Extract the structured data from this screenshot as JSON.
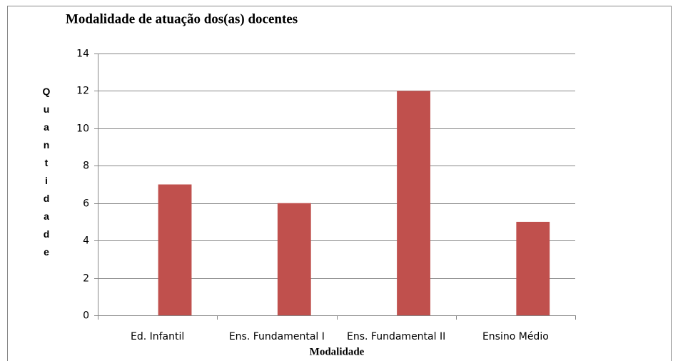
{
  "chart_data": {
    "type": "bar",
    "title": "Modalidade de atuação dos(as) docentes",
    "x_label": "Modalidade",
    "y_label": "Quantidade",
    "categories": [
      "Ed. Infantil",
      "Ens. Fundamental I",
      "Ens. Fundamental II",
      "Ensino Médio"
    ],
    "values": [
      7,
      6,
      12,
      5
    ],
    "color": "#c0504d",
    "ylim": [
      0,
      14
    ],
    "yticks": [
      0,
      2,
      4,
      6,
      8,
      10,
      12,
      14
    ],
    "grid": true
  }
}
